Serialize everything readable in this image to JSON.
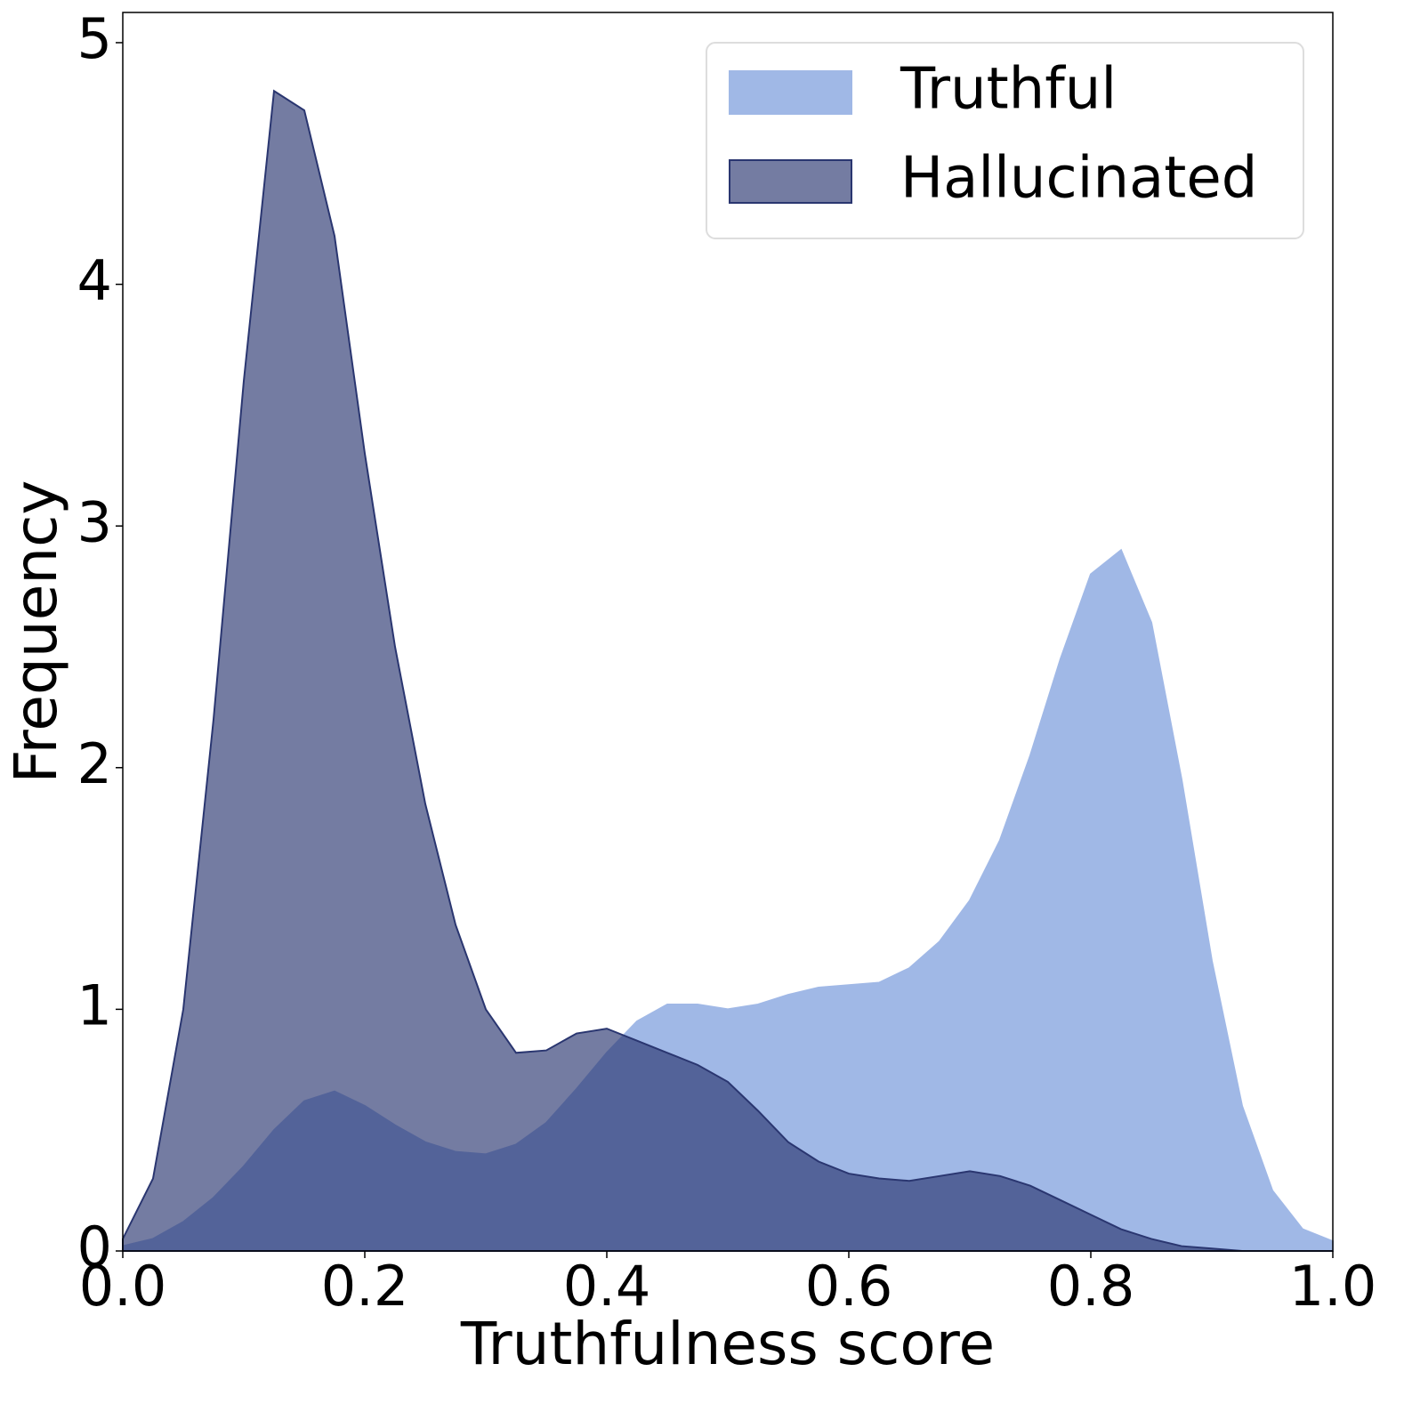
{
  "chart_data": {
    "type": "area",
    "x_label": "Truthfulness score",
    "y_label": "Frequency",
    "x": [
      0,
      0.025,
      0.05,
      0.075,
      0.1,
      0.125,
      0.15,
      0.175,
      0.2,
      0.225,
      0.25,
      0.275,
      0.3,
      0.325,
      0.35,
      0.375,
      0.4,
      0.425,
      0.45,
      0.475,
      0.5,
      0.525,
      0.55,
      0.575,
      0.6,
      0.625,
      0.65,
      0.675,
      0.7,
      0.725,
      0.75,
      0.775,
      0.8,
      0.825,
      0.85,
      0.875,
      0.9,
      0.925,
      0.95,
      0.975,
      1
    ],
    "series": [
      {
        "name": "Truthful",
        "color": "#a0b8e6",
        "values": [
          0.02,
          0.05,
          0.12,
          0.22,
          0.35,
          0.5,
          0.62,
          0.66,
          0.6,
          0.52,
          0.45,
          0.41,
          0.4,
          0.44,
          0.53,
          0.67,
          0.82,
          0.95,
          1.02,
          1.02,
          1.0,
          1.02,
          1.06,
          1.09,
          1.1,
          1.11,
          1.17,
          1.28,
          1.45,
          1.7,
          2.05,
          2.45,
          2.8,
          2.9,
          2.6,
          1.95,
          1.2,
          0.6,
          0.25,
          0.09,
          0.04
        ]
      },
      {
        "name": "Hallucinated",
        "color": "#2a3670",
        "values": [
          0.05,
          0.3,
          1.0,
          2.2,
          3.6,
          4.8,
          4.72,
          4.2,
          3.3,
          2.5,
          1.85,
          1.35,
          1.0,
          0.82,
          0.83,
          0.9,
          0.92,
          0.87,
          0.82,
          0.77,
          0.7,
          0.58,
          0.45,
          0.37,
          0.32,
          0.3,
          0.29,
          0.31,
          0.33,
          0.31,
          0.27,
          0.21,
          0.15,
          0.09,
          0.05,
          0.02,
          0.01,
          0,
          0,
          0,
          0
        ]
      }
    ],
    "xlim": [
      0,
      1
    ],
    "ylim": [
      0,
      5.125
    ],
    "xticks": [
      {
        "value": 0,
        "label": "0.0"
      },
      {
        "value": 0.2,
        "label": "0.2"
      },
      {
        "value": 0.4,
        "label": "0.4"
      },
      {
        "value": 0.6,
        "label": "0.6"
      },
      {
        "value": 0.8,
        "label": "0.8"
      },
      {
        "value": 1,
        "label": "1.0"
      }
    ],
    "yticks": [
      0,
      1,
      2,
      3,
      4,
      5
    ],
    "legend": "upper right",
    "grid": false
  }
}
